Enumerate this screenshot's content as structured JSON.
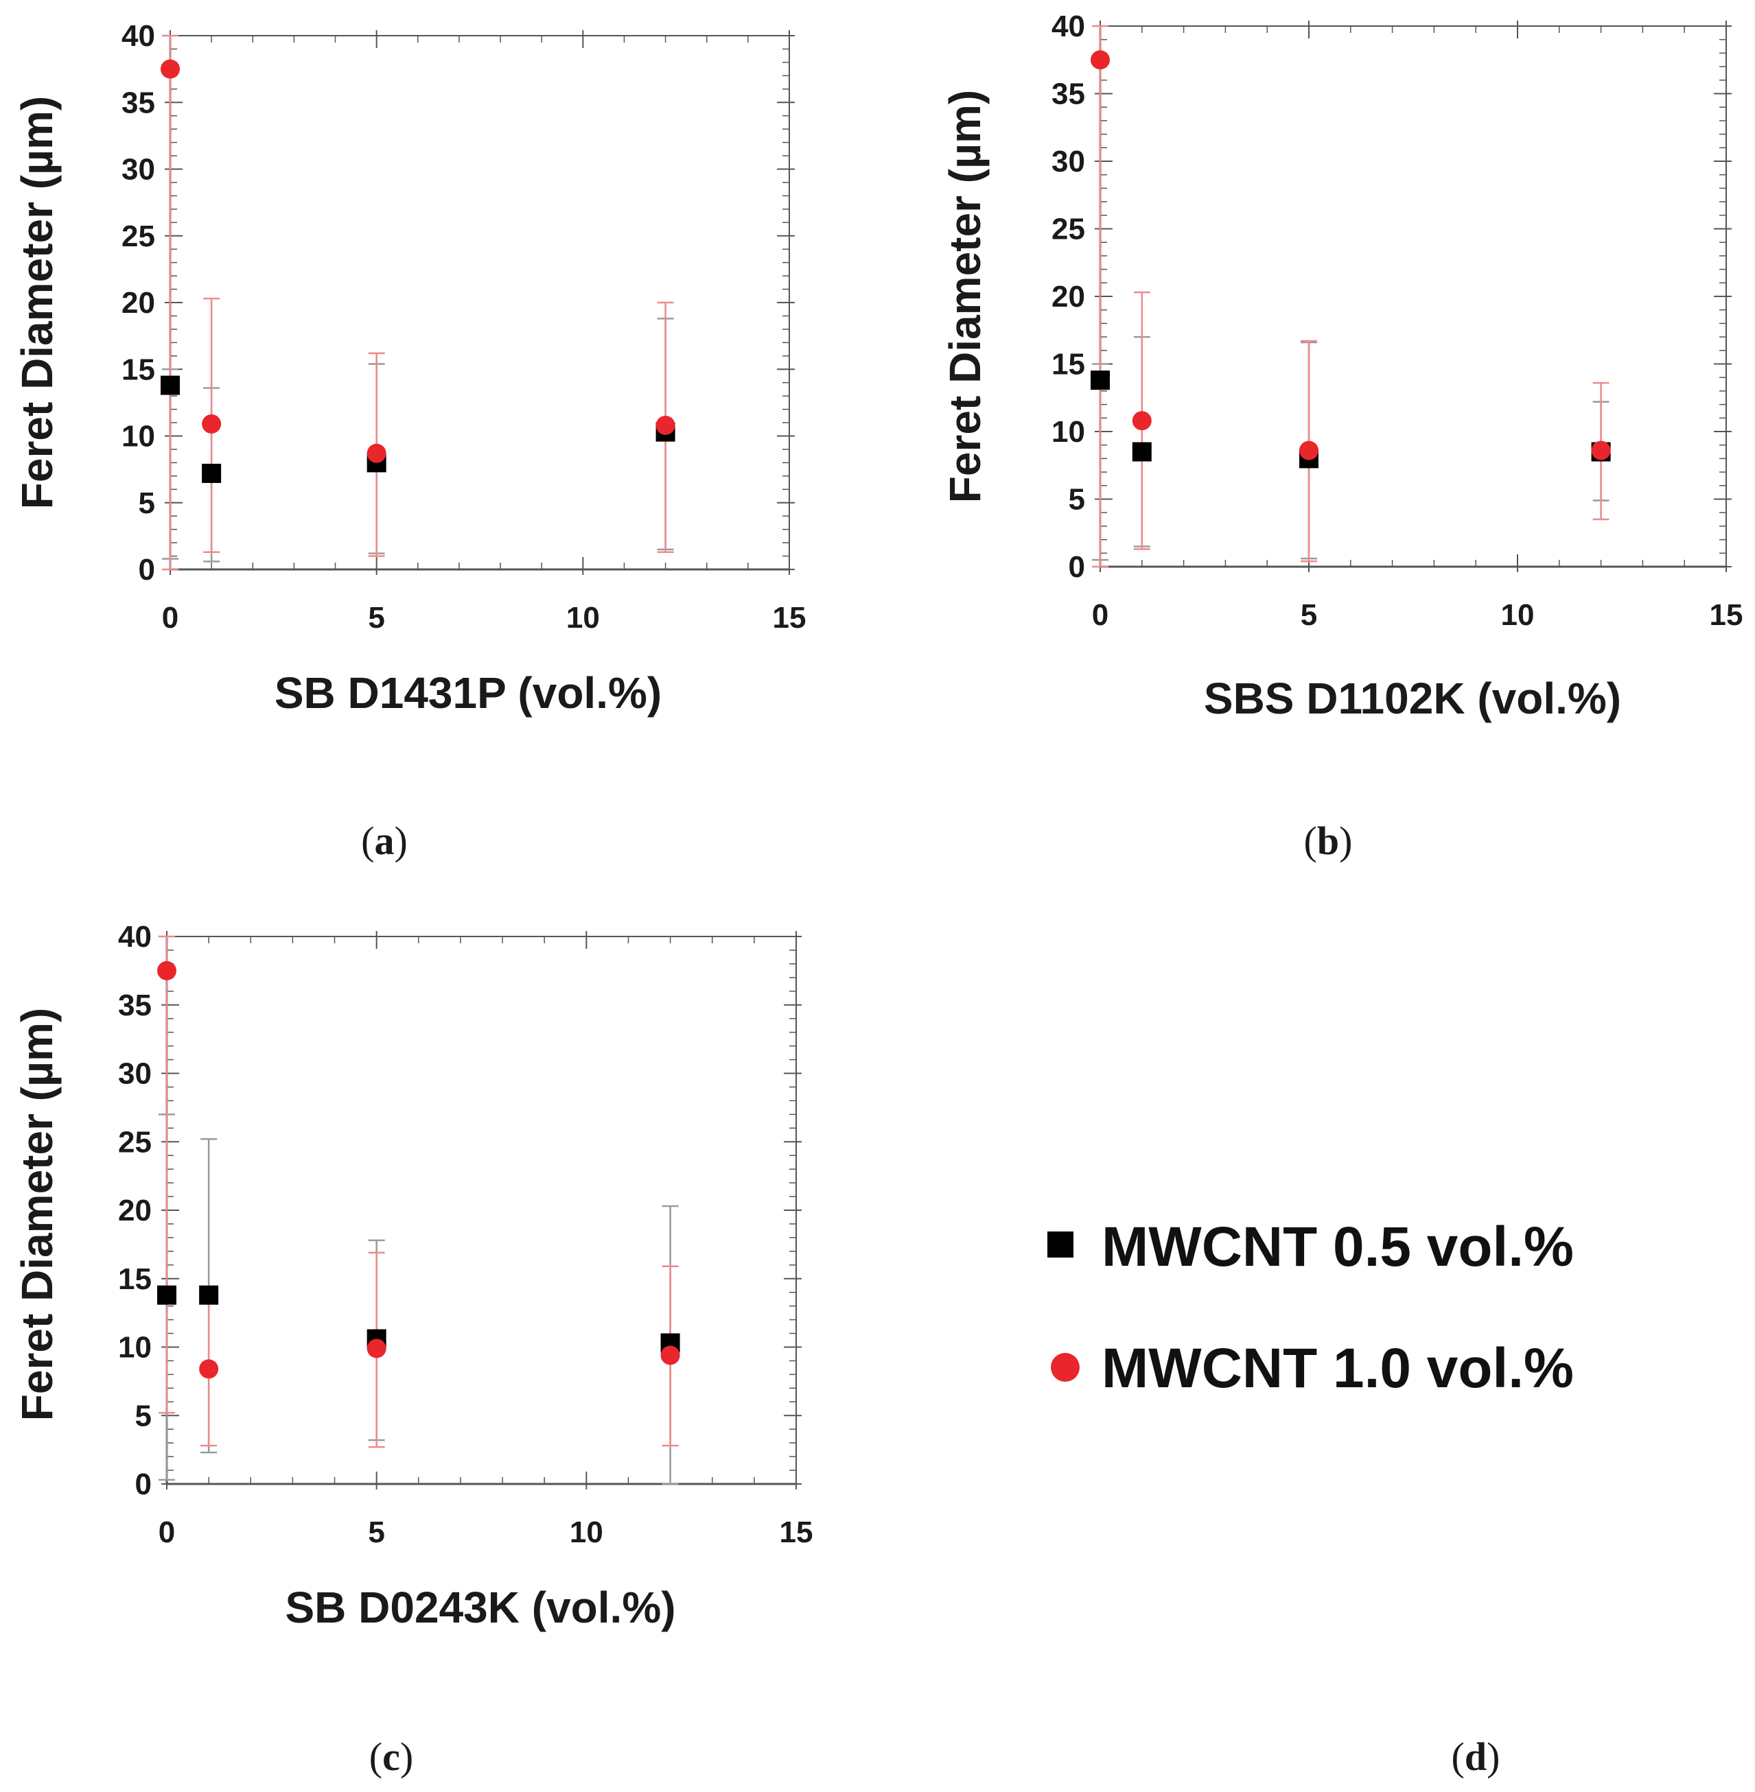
{
  "colors": {
    "series1": "#000000",
    "series2": "#e8262b",
    "series1_error": "#9a9a9a",
    "series2_error": "#ee8a8a",
    "axis": "#555555",
    "text": "#1a1a1a"
  },
  "legend": {
    "items": [
      {
        "label": "MWCNT 0.5 vol.%",
        "marker": "square",
        "color": "#000000"
      },
      {
        "label": "MWCNT 1.0 vol.%",
        "marker": "circle",
        "color": "#e8262b"
      }
    ],
    "panel_label": {
      "open": "(",
      "letter": "d",
      "close": ")"
    }
  },
  "chart_data": [
    {
      "type": "scatter",
      "panel": {
        "open": "(",
        "letter": "a",
        "close": ")"
      },
      "xlabel": "SB D1431P (vol.%)",
      "ylabel": "Feret Diameter (µm)",
      "xlim": [
        0,
        15
      ],
      "ylim": [
        0,
        40
      ],
      "xticks": [
        0,
        5,
        10,
        15
      ],
      "yticks": [
        0,
        5,
        10,
        15,
        20,
        25,
        30,
        35,
        40
      ],
      "xtick_labels": [
        "0",
        "5",
        "10",
        "15"
      ],
      "ytick_labels": [
        "0",
        "5",
        "10",
        "15",
        "20",
        "25",
        "30",
        "35",
        "40"
      ],
      "series": [
        {
          "name": "MWCNT 0.5 vol.%",
          "marker": "square",
          "x": [
            0,
            1,
            5,
            12
          ],
          "y": [
            13.8,
            7.2,
            8.0,
            10.3
          ],
          "err_low": [
            0.8,
            0.6,
            1.2,
            1.5
          ],
          "err_high": [
            15.0,
            13.6,
            15.4,
            18.8
          ]
        },
        {
          "name": "MWCNT 1.0 vol.%",
          "marker": "circle",
          "x": [
            0,
            1,
            5,
            12
          ],
          "y": [
            37.5,
            10.9,
            8.7,
            10.8
          ],
          "err_low": [
            0.0,
            1.3,
            1.0,
            1.3
          ],
          "err_high": [
            40.0,
            20.3,
            16.2,
            20.0
          ]
        }
      ]
    },
    {
      "type": "scatter",
      "panel": {
        "open": "(",
        "letter": "b",
        "close": ")"
      },
      "xlabel": "SBS D1102K (vol.%)",
      "ylabel": "Feret Diameter (µm)",
      "xlim": [
        0,
        15
      ],
      "ylim": [
        0,
        40
      ],
      "xticks": [
        0,
        5,
        10,
        15
      ],
      "yticks": [
        0,
        5,
        10,
        15,
        20,
        25,
        30,
        35,
        40
      ],
      "xtick_labels": [
        "0",
        "5",
        "10",
        "15"
      ],
      "ytick_labels": [
        "0",
        "5",
        "10",
        "15",
        "20",
        "25",
        "30",
        "35",
        "40"
      ],
      "series": [
        {
          "name": "MWCNT 0.5 vol.%",
          "marker": "square",
          "x": [
            0,
            1,
            5,
            12
          ],
          "y": [
            13.8,
            8.5,
            8.0,
            8.5
          ],
          "err_low": [
            0.5,
            1.5,
            0.6,
            4.9
          ],
          "err_high": [
            15.0,
            17.0,
            16.6,
            12.2
          ]
        },
        {
          "name": "MWCNT 1.0 vol.%",
          "marker": "circle",
          "x": [
            0,
            1,
            5,
            12
          ],
          "y": [
            37.5,
            10.8,
            8.6,
            8.6
          ],
          "err_low": [
            0.0,
            1.3,
            0.4,
            3.5
          ],
          "err_high": [
            40.0,
            20.3,
            16.7,
            13.6
          ]
        }
      ]
    },
    {
      "type": "scatter",
      "panel": {
        "open": "(",
        "letter": "c",
        "close": ")"
      },
      "xlabel": "SB D0243K (vol.%)",
      "ylabel": "Feret Diameter (µm)",
      "xlim": [
        0,
        15
      ],
      "ylim": [
        0,
        40
      ],
      "xticks": [
        0,
        5,
        10,
        15
      ],
      "yticks": [
        0,
        5,
        10,
        15,
        20,
        25,
        30,
        35,
        40
      ],
      "xtick_labels": [
        "0",
        "5",
        "10",
        "15"
      ],
      "ytick_labels": [
        "0",
        "5",
        "10",
        "15",
        "20",
        "25",
        "30",
        "35",
        "40"
      ],
      "series": [
        {
          "name": "MWCNT 0.5 vol.%",
          "marker": "square",
          "x": [
            0,
            1,
            5,
            12
          ],
          "y": [
            13.8,
            13.8,
            10.6,
            10.3
          ],
          "err_low": [
            0.3,
            2.3,
            3.2,
            0.0
          ],
          "err_high": [
            27.0,
            25.2,
            17.8,
            20.3
          ]
        },
        {
          "name": "MWCNT 1.0 vol.%",
          "marker": "circle",
          "x": [
            0,
            1,
            5,
            12
          ],
          "y": [
            37.5,
            8.4,
            9.9,
            9.4
          ],
          "err_low": [
            5.2,
            2.8,
            2.7,
            2.8
          ],
          "err_high": [
            40.0,
            14.0,
            16.9,
            15.9
          ]
        }
      ]
    }
  ]
}
